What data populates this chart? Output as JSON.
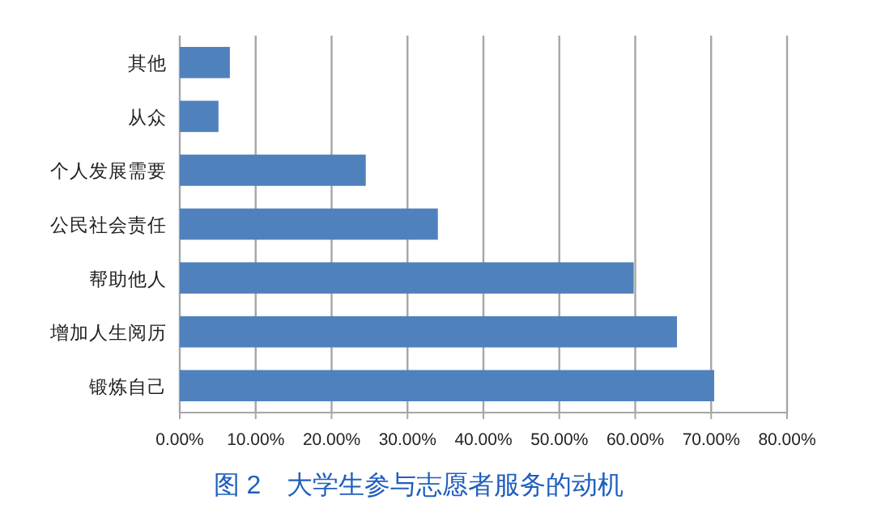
{
  "chart_data": {
    "type": "bar",
    "orientation": "horizontal",
    "title": "图 2　大学生参与志愿者服务的动机",
    "categories": [
      "其他",
      "从众",
      "个人发展需要",
      "公民社会责任",
      "帮助他人",
      "增加人生阅历",
      "锻炼自己"
    ],
    "values": [
      6.6,
      5.1,
      24.5,
      34.0,
      59.8,
      65.5,
      70.4
    ],
    "color": "#4f81bd",
    "xlim": [
      0,
      80
    ],
    "xticks": [
      {
        "value": 0,
        "label": "0.00%"
      },
      {
        "value": 10,
        "label": "10.00%"
      },
      {
        "value": 20,
        "label": "20.00%"
      },
      {
        "value": 30,
        "label": "30.00%"
      },
      {
        "value": 40,
        "label": "40.00%"
      },
      {
        "value": 50,
        "label": "50.00%"
      },
      {
        "value": 60,
        "label": "60.00%"
      },
      {
        "value": 70,
        "label": "70.00%"
      },
      {
        "value": 80,
        "label": "80.00%"
      }
    ],
    "grid": "x"
  }
}
